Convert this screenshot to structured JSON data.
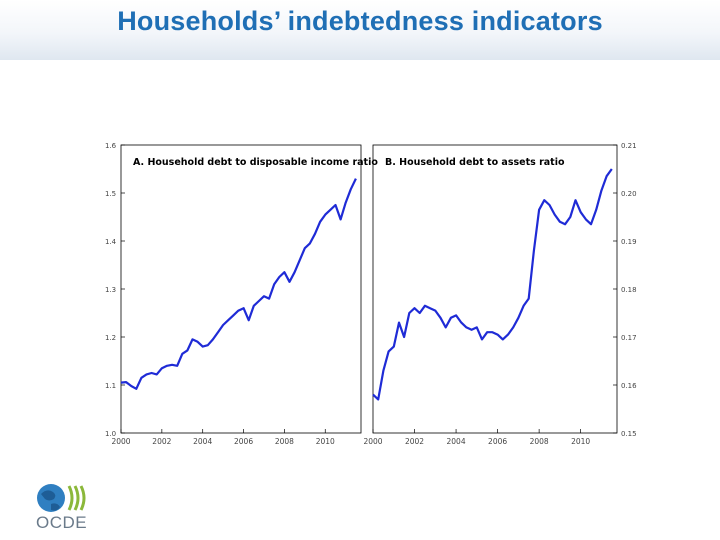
{
  "slide": {
    "title": "Households’ indebtedness indicators",
    "logo_text": "OCDE",
    "colors": {
      "title": "#1f6fb5",
      "series": "#1f2bd6",
      "axis": "#000000"
    }
  },
  "chart_data": [
    {
      "type": "line",
      "title": "A. Household debt to disposable income ratio",
      "xlabel": "",
      "ylabel": "",
      "x_ticks": [
        "2000",
        "2002",
        "2004",
        "2006",
        "2008",
        "2010"
      ],
      "y_ticks": [
        "1.0",
        "1.1",
        "1.2",
        "1.3",
        "1.4",
        "1.5",
        "1.6"
      ],
      "xlim": [
        2000,
        2011.75
      ],
      "ylim": [
        1.0,
        1.6
      ],
      "y_axis_side": "left",
      "grid": false,
      "series": [
        {
          "x": [
            2000.0,
            2000.25,
            2000.5,
            2000.75,
            2001.0,
            2001.25,
            2001.5,
            2001.75,
            2002.0,
            2002.25,
            2002.5,
            2002.75,
            2003.0,
            2003.25,
            2003.5,
            2003.75,
            2004.0,
            2004.25,
            2004.5,
            2004.75,
            2005.0,
            2005.25,
            2005.5,
            2005.75,
            2006.0,
            2006.25,
            2006.5,
            2006.75,
            2007.0,
            2007.25,
            2007.5,
            2007.75,
            2008.0,
            2008.25,
            2008.5,
            2008.75,
            2009.0,
            2009.25,
            2009.5,
            2009.75,
            2010.0,
            2010.25,
            2010.5,
            2010.75,
            2011.0,
            2011.25,
            2011.5
          ],
          "values": [
            1.105,
            1.106,
            1.098,
            1.092,
            1.115,
            1.122,
            1.125,
            1.122,
            1.135,
            1.14,
            1.142,
            1.14,
            1.165,
            1.172,
            1.195,
            1.19,
            1.18,
            1.183,
            1.195,
            1.21,
            1.225,
            1.235,
            1.245,
            1.255,
            1.26,
            1.235,
            1.265,
            1.275,
            1.285,
            1.28,
            1.31,
            1.325,
            1.335,
            1.315,
            1.335,
            1.36,
            1.385,
            1.395,
            1.415,
            1.44,
            1.455,
            1.465,
            1.475,
            1.445,
            1.48,
            1.508,
            1.53
          ]
        }
      ]
    },
    {
      "type": "line",
      "title": "B. Household debt to assets ratio",
      "xlabel": "",
      "ylabel": "",
      "x_ticks": [
        "2000",
        "2002",
        "2004",
        "2006",
        "2008",
        "2010"
      ],
      "y_ticks": [
        "0.15",
        "0.16",
        "0.17",
        "0.18",
        "0.19",
        "0.20",
        "0.21"
      ],
      "xlim": [
        2000,
        2011.75
      ],
      "ylim": [
        0.15,
        0.21
      ],
      "y_axis_side": "right",
      "grid": false,
      "series": [
        {
          "x": [
            2000.0,
            2000.25,
            2000.5,
            2000.75,
            2001.0,
            2001.25,
            2001.5,
            2001.75,
            2002.0,
            2002.25,
            2002.5,
            2002.75,
            2003.0,
            2003.25,
            2003.5,
            2003.75,
            2004.0,
            2004.25,
            2004.5,
            2004.75,
            2005.0,
            2005.25,
            2005.5,
            2005.75,
            2006.0,
            2006.25,
            2006.5,
            2006.75,
            2007.0,
            2007.25,
            2007.5,
            2007.75,
            2008.0,
            2008.25,
            2008.5,
            2008.75,
            2009.0,
            2009.25,
            2009.5,
            2009.75,
            2010.0,
            2010.25,
            2010.5,
            2010.75,
            2011.0,
            2011.25,
            2011.5
          ],
          "values": [
            0.158,
            0.157,
            0.163,
            0.167,
            0.168,
            0.173,
            0.17,
            0.175,
            0.176,
            0.175,
            0.1765,
            0.176,
            0.1755,
            0.174,
            0.172,
            0.174,
            0.1745,
            0.173,
            0.172,
            0.1715,
            0.172,
            0.1695,
            0.171,
            0.171,
            0.1705,
            0.1695,
            0.1705,
            0.172,
            0.174,
            0.1765,
            0.178,
            0.188,
            0.1965,
            0.1985,
            0.1975,
            0.1955,
            0.194,
            0.1935,
            0.195,
            0.1985,
            0.196,
            0.1945,
            0.1935,
            0.1965,
            0.2005,
            0.2035,
            0.205
          ]
        }
      ]
    }
  ]
}
